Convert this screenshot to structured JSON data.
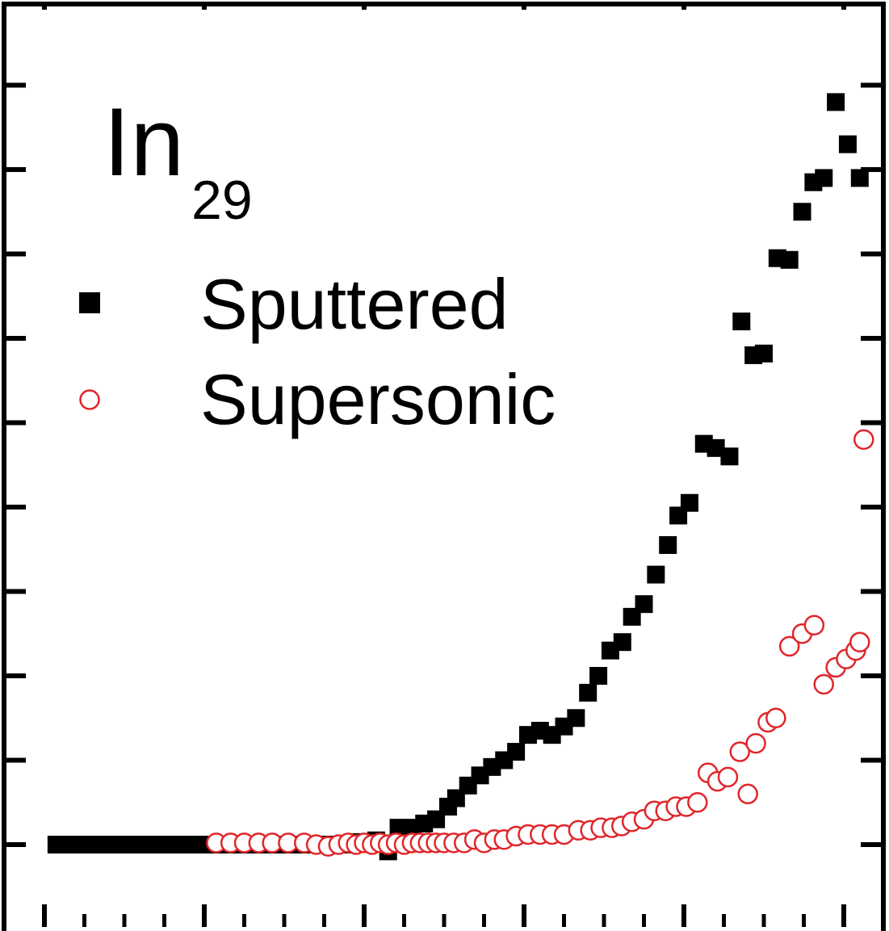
{
  "chart_data": {
    "type": "scatter",
    "title_main": "In",
    "title_sub": "29",
    "xlabel": "",
    "ylabel": "",
    "xlim": [
      0,
      100
    ],
    "ylim": [
      -1,
      10
    ],
    "legend_position": "top-left",
    "grid": false,
    "series": [
      {
        "name": "Sputtered",
        "marker": "filled-square",
        "color": "#000000",
        "points": [
          [
            1.5,
            0.0
          ],
          [
            2.5,
            0.0
          ],
          [
            3.5,
            0.0
          ],
          [
            4.5,
            0.0
          ],
          [
            5.5,
            0.0
          ],
          [
            6.5,
            0.0
          ],
          [
            7.5,
            0.0
          ],
          [
            8.5,
            0.0
          ],
          [
            9.5,
            0.0
          ],
          [
            10.5,
            0.0
          ],
          [
            11.5,
            0.0
          ],
          [
            12.5,
            0.0
          ],
          [
            13.5,
            0.0
          ],
          [
            14.5,
            0.0
          ],
          [
            15.5,
            0.0
          ],
          [
            16.5,
            0.0
          ],
          [
            17.5,
            0.0
          ],
          [
            18.5,
            0.0
          ],
          [
            19.5,
            0.0
          ],
          [
            20.5,
            0.0
          ],
          [
            21.5,
            0.0
          ],
          [
            22.5,
            0.0
          ],
          [
            23.5,
            0.0
          ],
          [
            25.5,
            0.0
          ],
          [
            27.5,
            0.0
          ],
          [
            29.5,
            0.0
          ],
          [
            31.5,
            0.0
          ],
          [
            33.5,
            0.0
          ],
          [
            35.5,
            0.0
          ],
          [
            37.5,
            0.0
          ],
          [
            39.5,
            0.03
          ],
          [
            41.5,
            0.05
          ],
          [
            43.0,
            -0.08
          ],
          [
            44.3,
            0.2
          ],
          [
            46.0,
            0.2
          ],
          [
            47.5,
            0.25
          ],
          [
            49.0,
            0.3
          ],
          [
            50.5,
            0.45
          ],
          [
            51.5,
            0.55
          ],
          [
            53.0,
            0.7
          ],
          [
            54.5,
            0.82
          ],
          [
            56.0,
            0.92
          ],
          [
            57.5,
            1.0
          ],
          [
            59.0,
            1.1
          ],
          [
            60.5,
            1.3
          ],
          [
            62.0,
            1.35
          ],
          [
            63.5,
            1.3
          ],
          [
            65.0,
            1.4
          ],
          [
            66.5,
            1.5
          ],
          [
            68.0,
            1.8
          ],
          [
            69.3,
            2.0
          ],
          [
            70.8,
            2.3
          ],
          [
            72.3,
            2.4
          ],
          [
            73.5,
            2.7
          ],
          [
            75.0,
            2.85
          ],
          [
            76.5,
            3.2
          ],
          [
            78.0,
            3.55
          ],
          [
            79.3,
            3.9
          ],
          [
            80.7,
            4.05
          ],
          [
            82.5,
            4.75
          ],
          [
            84.0,
            4.7
          ],
          [
            85.7,
            4.6
          ],
          [
            87.2,
            6.2
          ],
          [
            88.7,
            5.8
          ],
          [
            90.0,
            5.82
          ],
          [
            91.7,
            6.95
          ],
          [
            93.2,
            6.93
          ],
          [
            94.8,
            7.5
          ],
          [
            96.2,
            7.85
          ],
          [
            97.5,
            7.9
          ],
          [
            99.0,
            8.8
          ],
          [
            100.5,
            8.3
          ],
          [
            102.0,
            7.9
          ]
        ]
      },
      {
        "name": "Supersonic",
        "marker": "open-circle",
        "color": "#e0262b",
        "points": [
          [
            21.5,
            0.02
          ],
          [
            23.3,
            0.02
          ],
          [
            25.0,
            0.02
          ],
          [
            26.8,
            0.02
          ],
          [
            28.5,
            0.02
          ],
          [
            30.5,
            0.02
          ],
          [
            32.5,
            0.02
          ],
          [
            34.0,
            0.0
          ],
          [
            35.5,
            -0.02
          ],
          [
            36.8,
            0.0
          ],
          [
            38.0,
            0.02
          ],
          [
            39.0,
            0.0
          ],
          [
            40.0,
            0.02
          ],
          [
            41.0,
            0.0
          ],
          [
            42.0,
            0.02
          ],
          [
            43.0,
            0.0
          ],
          [
            44.0,
            0.02
          ],
          [
            45.0,
            0.0
          ],
          [
            46.0,
            0.02
          ],
          [
            47.0,
            0.02
          ],
          [
            48.0,
            0.02
          ],
          [
            49.0,
            0.02
          ],
          [
            50.0,
            0.02
          ],
          [
            51.2,
            0.02
          ],
          [
            52.5,
            0.02
          ],
          [
            53.8,
            0.06
          ],
          [
            55.0,
            0.02
          ],
          [
            56.3,
            0.06
          ],
          [
            57.5,
            0.06
          ],
          [
            59.0,
            0.1
          ],
          [
            60.5,
            0.12
          ],
          [
            62.0,
            0.12
          ],
          [
            63.5,
            0.12
          ],
          [
            65.0,
            0.12
          ],
          [
            66.8,
            0.17
          ],
          [
            68.3,
            0.17
          ],
          [
            69.6,
            0.2
          ],
          [
            71.0,
            0.2
          ],
          [
            72.2,
            0.22
          ],
          [
            73.5,
            0.27
          ],
          [
            75.0,
            0.3
          ],
          [
            76.3,
            0.4
          ],
          [
            77.7,
            0.4
          ],
          [
            79.0,
            0.45
          ],
          [
            80.3,
            0.45
          ],
          [
            81.7,
            0.5
          ],
          [
            83.0,
            0.85
          ],
          [
            84.2,
            0.75
          ],
          [
            85.5,
            0.8
          ],
          [
            87.0,
            1.1
          ],
          [
            88.0,
            0.6
          ],
          [
            89.0,
            1.2
          ],
          [
            90.5,
            1.45
          ],
          [
            91.5,
            1.5
          ],
          [
            93.2,
            2.35
          ],
          [
            94.8,
            2.5
          ],
          [
            96.3,
            2.6
          ],
          [
            97.5,
            1.9
          ],
          [
            99.0,
            2.1
          ],
          [
            100.3,
            2.2
          ],
          [
            101.5,
            2.3
          ],
          [
            102.0,
            2.4
          ],
          [
            102.5,
            4.8
          ]
        ]
      }
    ],
    "legend": [
      {
        "label": "Sputtered",
        "marker": "filled-square"
      },
      {
        "label": "Supersonic",
        "marker": "open-circle"
      }
    ]
  }
}
